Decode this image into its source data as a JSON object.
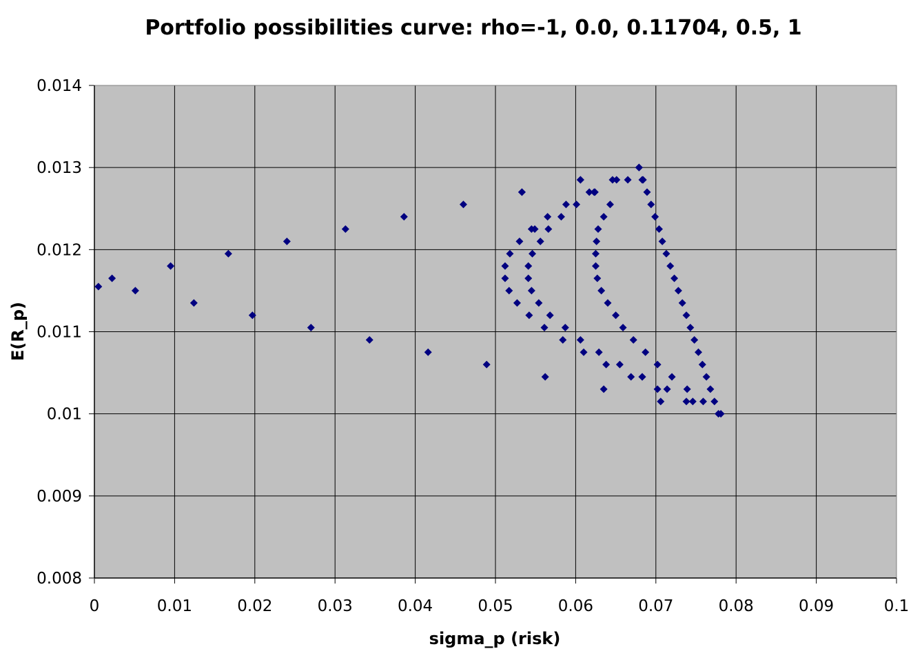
{
  "chart_data": {
    "type": "scatter",
    "title": "Portfolio possibilities curve: rho=-1, 0.0, 0.11704, 0.5, 1",
    "xlabel": "sigma_p (risk)",
    "ylabel": "E(R_p)",
    "xlim": [
      0,
      0.1
    ],
    "ylim": [
      0.008,
      0.014
    ],
    "x_ticks": [
      "0",
      "0.01",
      "0.02",
      "0.03",
      "0.04",
      "0.05",
      "0.06",
      "0.07",
      "0.08",
      "0.09",
      "0.1"
    ],
    "y_ticks": [
      "0.014",
      "0.013",
      "0.012",
      "0.011",
      "0.01",
      "0.009",
      "0.008"
    ],
    "grid": true,
    "legend": false,
    "colors": {
      "plot_background": "#c0c0c0",
      "marker": "#000080",
      "grid": "#000000"
    },
    "marker": "diamond",
    "series": [
      {
        "points": [
          [
            0.0005,
            0.01155
          ],
          [
            0.0022,
            0.01165
          ],
          [
            0.0051,
            0.0115
          ],
          [
            0.0095,
            0.0118
          ],
          [
            0.0124,
            0.01135
          ],
          [
            0.0167,
            0.01195
          ],
          [
            0.0197,
            0.0112
          ],
          [
            0.024,
            0.0121
          ],
          [
            0.027,
            0.01105
          ],
          [
            0.0313,
            0.01225
          ],
          [
            0.0343,
            0.0109
          ],
          [
            0.0386,
            0.0124
          ],
          [
            0.0416,
            0.01075
          ],
          [
            0.046,
            0.01255
          ],
          [
            0.0489,
            0.0106
          ],
          [
            0.0533,
            0.0127
          ],
          [
            0.0562,
            0.01045
          ],
          [
            0.0606,
            0.01285
          ],
          [
            0.0635,
            0.0103
          ],
          [
            0.0679,
            0.013
          ]
        ]
      },
      {
        "points": [
          [
            0.0533,
            0.0127
          ],
          [
            0.053,
            0.0121
          ],
          [
            0.0518,
            0.01195
          ],
          [
            0.0512,
            0.0118
          ],
          [
            0.0512,
            0.01165
          ],
          [
            0.0517,
            0.0115
          ],
          [
            0.0527,
            0.01135
          ],
          [
            0.0542,
            0.0112
          ],
          [
            0.0561,
            0.01105
          ],
          [
            0.0584,
            0.0109
          ],
          [
            0.061,
            0.01075
          ],
          [
            0.0638,
            0.0106
          ],
          [
            0.0669,
            0.01045
          ],
          [
            0.0702,
            0.0103
          ],
          [
            0.0738,
            0.01015
          ],
          [
            0.0781,
            0.01
          ],
          [
            0.0549,
            0.01225
          ],
          [
            0.0565,
            0.0124
          ],
          [
            0.0588,
            0.01255
          ],
          [
            0.0617,
            0.0127
          ],
          [
            0.0646,
            0.01285
          ]
        ]
      },
      {
        "points": [
          [
            0.0545,
            0.01225
          ],
          [
            0.0556,
            0.0121
          ],
          [
            0.0546,
            0.01195
          ],
          [
            0.0541,
            0.0118
          ],
          [
            0.0541,
            0.01165
          ],
          [
            0.0545,
            0.0115
          ],
          [
            0.0554,
            0.01135
          ],
          [
            0.0568,
            0.0112
          ],
          [
            0.0587,
            0.01105
          ],
          [
            0.0606,
            0.0109
          ],
          [
            0.0629,
            0.01075
          ],
          [
            0.0655,
            0.0106
          ],
          [
            0.0683,
            0.01045
          ],
          [
            0.0714,
            0.0103
          ],
          [
            0.0746,
            0.01015
          ],
          [
            0.0566,
            0.01225
          ],
          [
            0.0582,
            0.0124
          ],
          [
            0.0601,
            0.01255
          ],
          [
            0.0623,
            0.0127
          ],
          [
            0.0651,
            0.01285
          ],
          [
            0.0679,
            0.013
          ]
        ]
      },
      {
        "points": [
          [
            0.0606,
            0.01285
          ],
          [
            0.0624,
            0.0127
          ],
          [
            0.0643,
            0.01255
          ],
          [
            0.0635,
            0.0124
          ],
          [
            0.0628,
            0.01225
          ],
          [
            0.0626,
            0.0121
          ],
          [
            0.0625,
            0.01195
          ],
          [
            0.0625,
            0.0118
          ],
          [
            0.0627,
            0.01165
          ],
          [
            0.0632,
            0.0115
          ],
          [
            0.064,
            0.01135
          ],
          [
            0.065,
            0.0112
          ],
          [
            0.0659,
            0.01105
          ],
          [
            0.0672,
            0.0109
          ],
          [
            0.0687,
            0.01075
          ],
          [
            0.0702,
            0.0106
          ],
          [
            0.072,
            0.01045
          ],
          [
            0.0739,
            0.0103
          ],
          [
            0.0759,
            0.01015
          ],
          [
            0.0665,
            0.01285
          ],
          [
            0.0683,
            0.01285
          ]
        ]
      },
      {
        "points": [
          [
            0.0679,
            0.013
          ],
          [
            0.0684,
            0.01285
          ],
          [
            0.0689,
            0.0127
          ],
          [
            0.0694,
            0.01255
          ],
          [
            0.0699,
            0.0124
          ],
          [
            0.0704,
            0.01225
          ],
          [
            0.0708,
            0.0121
          ],
          [
            0.0713,
            0.01195
          ],
          [
            0.0718,
            0.0118
          ],
          [
            0.0723,
            0.01165
          ],
          [
            0.0728,
            0.0115
          ],
          [
            0.0733,
            0.01135
          ],
          [
            0.0738,
            0.0112
          ],
          [
            0.0743,
            0.01105
          ],
          [
            0.0748,
            0.0109
          ],
          [
            0.0753,
            0.01075
          ],
          [
            0.0758,
            0.0106
          ],
          [
            0.0763,
            0.01045
          ],
          [
            0.0768,
            0.0103
          ],
          [
            0.0773,
            0.01015
          ],
          [
            0.0778,
            0.01
          ],
          [
            0.0706,
            0.01015
          ],
          [
            0.0683,
            0.01045
          ]
        ]
      }
    ]
  }
}
